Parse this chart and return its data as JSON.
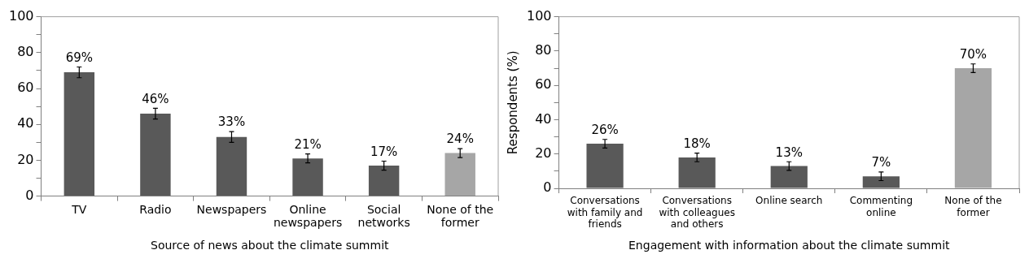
{
  "chart_data": [
    {
      "type": "bar",
      "xlabel": "Source of news about the climate summit",
      "categories": [
        "TV",
        "Radio",
        "Newspapers",
        "Online newspapers",
        "Social networks",
        "None of the former"
      ],
      "values": [
        69,
        46,
        33,
        21,
        17,
        24
      ],
      "colors": [
        "#595959",
        "#595959",
        "#595959",
        "#595959",
        "#595959",
        "#a6a6a6"
      ],
      "errors": [
        3,
        3,
        3,
        2.5,
        2.5,
        2.5
      ],
      "value_labels": [
        "69%",
        "46%",
        "33%",
        "21%",
        "17%",
        "24%"
      ],
      "ylim": [
        0,
        100
      ],
      "yticks": [
        0,
        {
          "value": 10,
          "label": null
        },
        20,
        {
          "value": 30,
          "label": null
        },
        40,
        {
          "value": 50,
          "label": null
        },
        60,
        {
          "value": 70,
          "label": null
        },
        80,
        {
          "value": 90,
          "label": null
        },
        100
      ],
      "legend": false,
      "grid": false
    },
    {
      "type": "bar",
      "xlabel": "Engagement with information about the climate summit",
      "ylabel": "Respondents (%)",
      "categories": [
        "Conversations with family and friends",
        "Conversations with colleagues and others",
        "Online search",
        "Commenting online",
        "None of the former"
      ],
      "values": [
        26,
        18,
        13,
        7,
        70
      ],
      "colors": [
        "#595959",
        "#595959",
        "#595959",
        "#595959",
        "#a6a6a6"
      ],
      "errors": [
        2.5,
        2.5,
        2.5,
        2.5,
        2.5
      ],
      "value_labels": [
        "26%",
        "18%",
        "13%",
        "7%",
        "70%"
      ],
      "ylim": [
        0,
        100
      ],
      "yticks": [
        0,
        {
          "value": 10,
          "label": null
        },
        20,
        {
          "value": 30,
          "label": null
        },
        40,
        {
          "value": 50,
          "label": null
        },
        60,
        {
          "value": 70,
          "label": null
        },
        80,
        {
          "value": 90,
          "label": null
        },
        100
      ],
      "legend": false,
      "grid": false
    }
  ]
}
